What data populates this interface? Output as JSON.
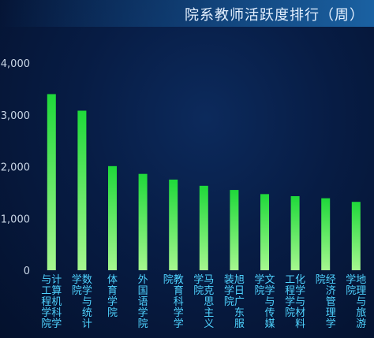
{
  "header": {
    "title": "院系教师活跃度排行（周）"
  },
  "chart_data": {
    "type": "bar",
    "title": "院系教师活跃度排行（周）",
    "xlabel": "",
    "ylabel": "",
    "ylim": [
      0,
      4000
    ],
    "yticks": [
      "0",
      "1,000",
      "2,000",
      "3,000",
      "4,000"
    ],
    "grid": false,
    "categories": [
      "计算机科学与工程学院",
      "数学与统计学院",
      "体育学院",
      "外国语学院",
      "教育科学学院",
      "马克思主义学院",
      "旭日广东服装学院",
      "文学与传媒学院",
      "化学与材料工程学院",
      "经济管理学院",
      "地理与旅游学院"
    ],
    "values": [
      3400,
      3080,
      2010,
      1860,
      1750,
      1630,
      1550,
      1470,
      1430,
      1390,
      1320
    ],
    "colors": {
      "bar_top": "#1fd93a",
      "bar_bottom": "#a6f78f",
      "label": "#4fd3ff",
      "tick": "#c9d6e6"
    }
  }
}
